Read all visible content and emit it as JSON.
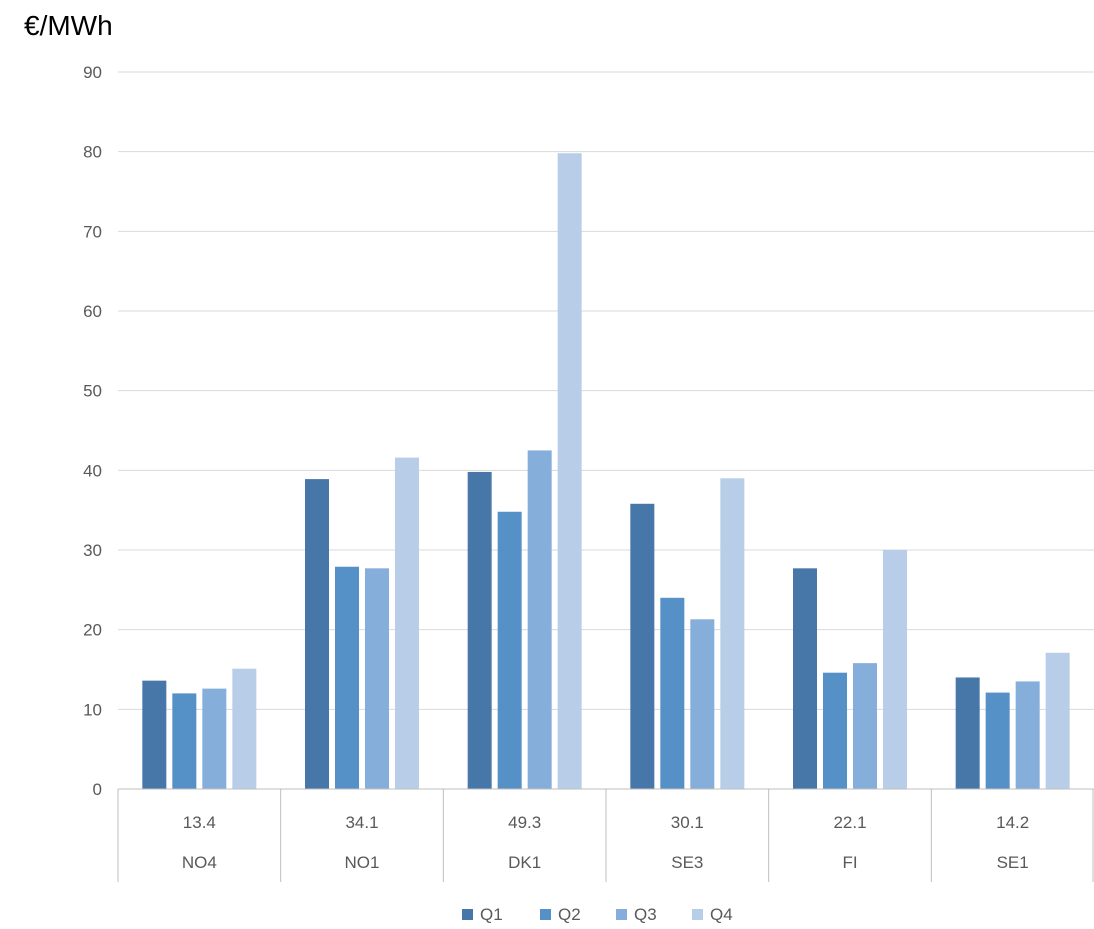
{
  "chart_data": {
    "type": "bar",
    "ylabel": "€/MWh",
    "ylim": [
      0,
      90
    ],
    "ytick_step": 10,
    "yticks": [
      "0",
      "10",
      "20",
      "30",
      "40",
      "50",
      "60",
      "70",
      "80",
      "90"
    ],
    "grid": true,
    "legend_position": "bottom",
    "categories": [
      "NO4",
      "NO1",
      "DK1",
      "SE3",
      "FI",
      "SE1"
    ],
    "category_sublabels": [
      "13.4",
      "34.1",
      "49.3",
      "30.1",
      "22.1",
      "14.2"
    ],
    "series": [
      {
        "name": "Q1",
        "color": "#4677a8",
        "values": [
          13.6,
          38.9,
          39.8,
          35.8,
          27.7,
          14.0
        ]
      },
      {
        "name": "Q2",
        "color": "#5590c6",
        "values": [
          12.0,
          27.9,
          34.8,
          24.0,
          14.6,
          12.1
        ]
      },
      {
        "name": "Q3",
        "color": "#86aedb",
        "values": [
          12.6,
          27.7,
          42.5,
          21.3,
          15.8,
          13.5
        ]
      },
      {
        "name": "Q4",
        "color": "#b8cde8",
        "values": [
          15.1,
          41.6,
          79.8,
          39.0,
          30.0,
          17.1
        ]
      }
    ]
  },
  "colors": {
    "gridline": "#d9d9d9",
    "axis_line": "#bfbfbf",
    "text": "#595959"
  }
}
